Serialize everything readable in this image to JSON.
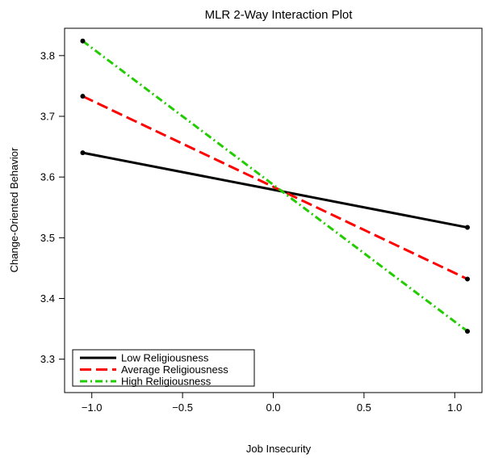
{
  "chart_data": {
    "type": "line",
    "title": "MLR 2-Way Interaction Plot",
    "xlabel": "Job Insecurity",
    "ylabel": "Change-Oriented Behavior",
    "xlim": [
      -1.15,
      1.15
    ],
    "ylim": [
      3.245,
      3.845
    ],
    "xticks": [
      -1.0,
      -0.5,
      0.0,
      0.5,
      1.0
    ],
    "xtick_labels": [
      "−1.0",
      "−0.5",
      "0.0",
      "0.5",
      "1.0"
    ],
    "yticks": [
      3.3,
      3.4,
      3.5,
      3.6,
      3.7,
      3.8
    ],
    "ytick_labels": [
      "3.3",
      "3.4",
      "3.5",
      "3.6",
      "3.7",
      "3.8"
    ],
    "x": [
      -1.05,
      1.07
    ],
    "series": [
      {
        "name": "Low Religiousness",
        "values": [
          3.64,
          3.517
        ],
        "color": "#000000",
        "dash": "solid"
      },
      {
        "name": "Average Religiousness",
        "values": [
          3.733,
          3.432
        ],
        "color": "#ff0000",
        "dash": "dashed"
      },
      {
        "name": "High Religiousness",
        "values": [
          3.824,
          3.346
        ],
        "color": "#22cc00",
        "dash": "dotdash"
      }
    ],
    "legend_position": "bottom-left",
    "grid": false
  }
}
